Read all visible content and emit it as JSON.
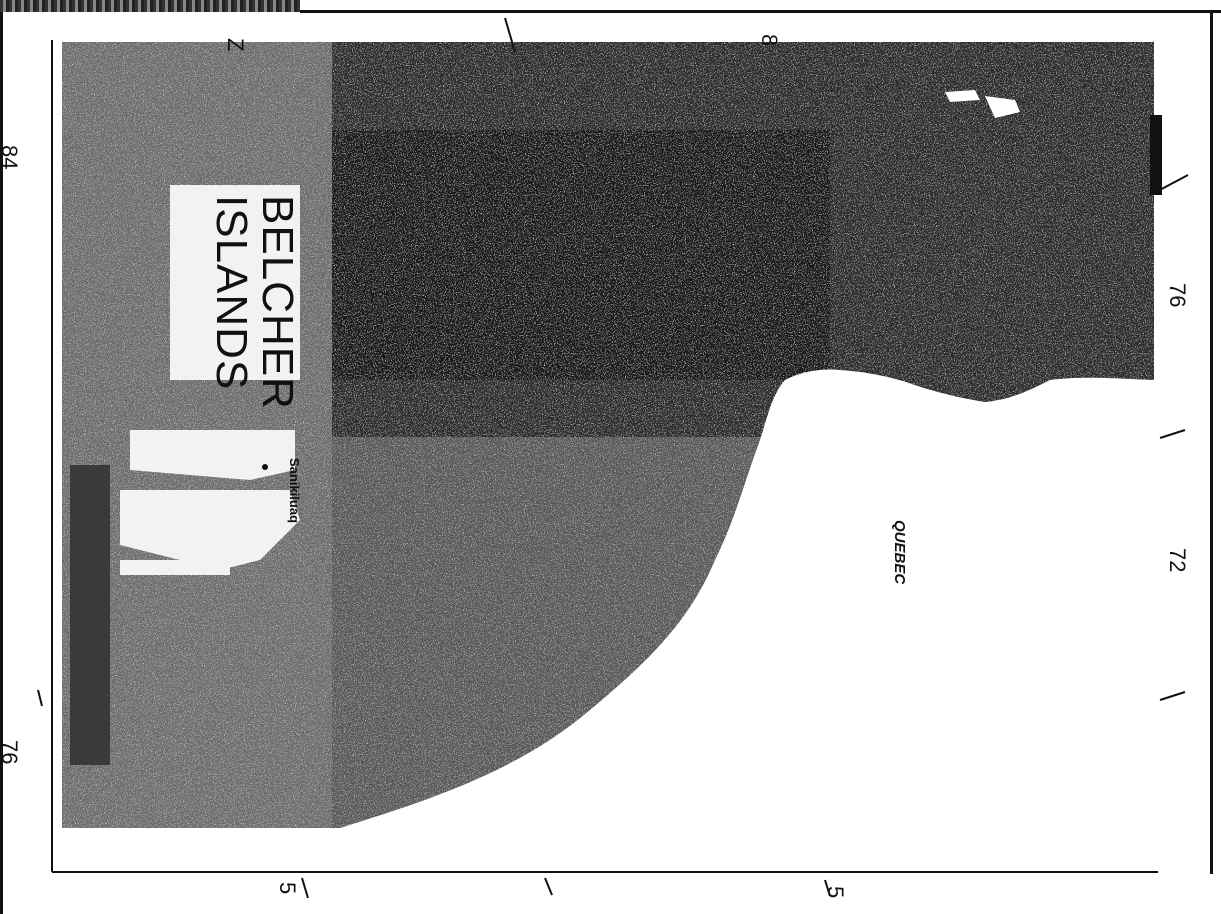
{
  "map": {
    "title_line1": "BELCHER",
    "title_line2": "ISLANDS",
    "place": "Sanikiluaq",
    "region": "QUEBEC"
  },
  "ticks": {
    "left_top": "84",
    "left_bottom": "76",
    "right_top": "76",
    "right_middle": "72",
    "top_left": "Z",
    "top_right": "8",
    "bottom_left": "5",
    "bottom_right": "5"
  },
  "colors": {
    "water": "#4a4a4a",
    "water_dark": "#262626",
    "land": "#ffffff",
    "frame": "#111111"
  }
}
